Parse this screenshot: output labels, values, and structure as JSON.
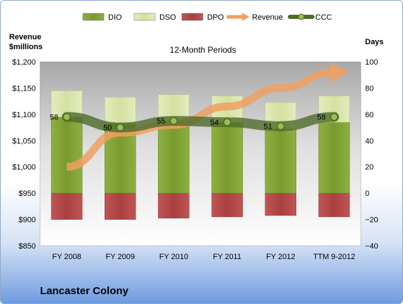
{
  "chart_data": {
    "type": "bar",
    "title": "12-Month Periods",
    "company": "Lancaster Colony",
    "left_axis_label": [
      "Revenue",
      "$millions"
    ],
    "right_axis_label": "Days",
    "categories": [
      "FY 2008",
      "FY 2009",
      "FY 2010",
      "FY 2011",
      "FY 2012",
      "TTM 9-2012"
    ],
    "left_axis": {
      "min": 850,
      "max": 1200,
      "step": 50,
      "tick_labels": [
        "$850",
        "$900",
        "$950",
        "$1,000",
        "$1,050",
        "$1,100",
        "$1,150",
        "$1,200"
      ]
    },
    "right_axis": {
      "min": -40,
      "max": 100,
      "step": 20,
      "tick_labels": [
        "−40",
        "−20",
        "0",
        "20",
        "40",
        "60",
        "80",
        "100"
      ]
    },
    "series": [
      {
        "name": "DIO",
        "axis": "right",
        "kind": "stacked-bar",
        "color": "#7a9a30",
        "values": [
          58,
          53,
          55,
          54,
          49,
          54
        ]
      },
      {
        "name": "DSO",
        "axis": "right",
        "kind": "stacked-bar",
        "color": "#d7e4a8",
        "values": [
          20,
          20,
          20,
          20,
          20,
          20
        ]
      },
      {
        "name": "DPO",
        "axis": "right",
        "kind": "stacked-bar-negative",
        "color": "#b14747",
        "values": [
          -20,
          -20,
          -19,
          -18,
          -17,
          -18
        ]
      },
      {
        "name": "Revenue",
        "axis": "left",
        "kind": "arrow-line",
        "color": "#f0a060",
        "values": [
          1000,
          1065,
          1080,
          1115,
          1150,
          1180
        ]
      },
      {
        "name": "CCC",
        "axis": "right",
        "kind": "line-markers",
        "color": "#4f6b2a",
        "values": [
          58,
          50,
          55,
          54,
          51,
          58
        ],
        "data_labels": [
          "58",
          "50",
          "55",
          "54",
          "51",
          "58"
        ]
      }
    ],
    "legend_position": "top",
    "grid": false
  }
}
